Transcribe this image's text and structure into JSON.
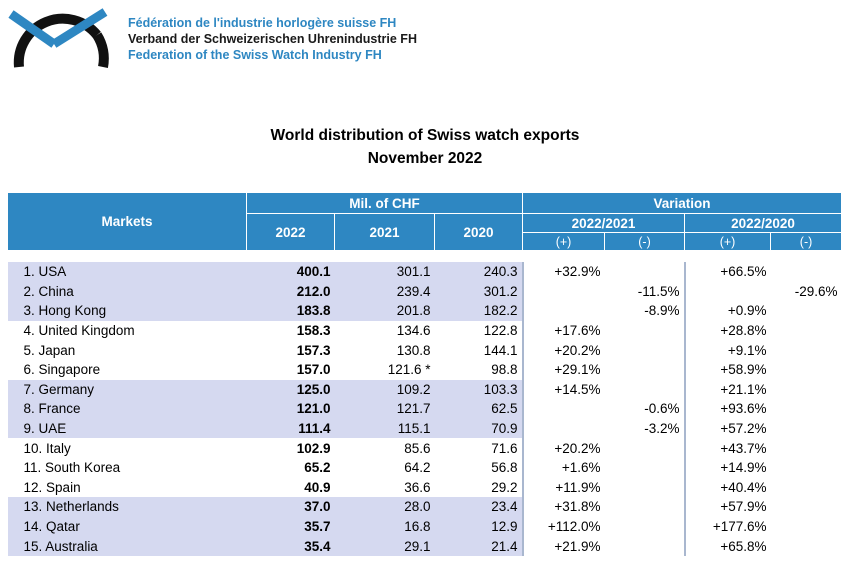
{
  "org": {
    "name_fr": "Fédération de l'industrie horlogère suisse FH",
    "name_de": "Verband der Schweizerischen Uhrenindustrie FH",
    "name_en": "Federation of the Swiss Watch Industry FH",
    "colors": {
      "brand_blue": "#2e87c2",
      "row_shade": "#d5d9f0"
    }
  },
  "title": {
    "line1": "World distribution of Swiss watch exports",
    "line2": "November 2022"
  },
  "table": {
    "headers": {
      "markets": "Markets",
      "mil_chf": "Mil. of CHF",
      "variation": "Variation",
      "y2022": "2022",
      "y2021": "2021",
      "y2020": "2020",
      "var_22_21": "2022/2021",
      "var_22_20": "2022/2020",
      "plus": "(+)",
      "minus": "(-)"
    },
    "rows": [
      {
        "rank": "1.",
        "market": "USA",
        "v2022": "400.1",
        "v2021": "301.1",
        "v2020": "240.3",
        "var1_plus": "+32.9%",
        "var1_minus": "",
        "var2_plus": "+66.5%",
        "var2_minus": ""
      },
      {
        "rank": "2.",
        "market": "China",
        "v2022": "212.0",
        "v2021": "239.4",
        "v2020": "301.2",
        "var1_plus": "",
        "var1_minus": "-11.5%",
        "var2_plus": "",
        "var2_minus": "-29.6%"
      },
      {
        "rank": "3.",
        "market": "Hong Kong",
        "v2022": "183.8",
        "v2021": "201.8",
        "v2020": "182.2",
        "var1_plus": "",
        "var1_minus": "-8.9%",
        "var2_plus": "+0.9%",
        "var2_minus": ""
      },
      {
        "rank": "4.",
        "market": "United Kingdom",
        "v2022": "158.3",
        "v2021": "134.6",
        "v2020": "122.8",
        "var1_plus": "+17.6%",
        "var1_minus": "",
        "var2_plus": "+28.8%",
        "var2_minus": ""
      },
      {
        "rank": "5.",
        "market": "Japan",
        "v2022": "157.3",
        "v2021": "130.8",
        "v2020": "144.1",
        "var1_plus": "+20.2%",
        "var1_minus": "",
        "var2_plus": "+9.1%",
        "var2_minus": ""
      },
      {
        "rank": "6.",
        "market": "Singapore",
        "v2022": "157.0",
        "v2021": "121.6 *",
        "v2020": "98.8",
        "var1_plus": "+29.1%",
        "var1_minus": "",
        "var2_plus": "+58.9%",
        "var2_minus": ""
      },
      {
        "rank": "7.",
        "market": "Germany",
        "v2022": "125.0",
        "v2021": "109.2",
        "v2020": "103.3",
        "var1_plus": "+14.5%",
        "var1_minus": "",
        "var2_plus": "+21.1%",
        "var2_minus": ""
      },
      {
        "rank": "8.",
        "market": "France",
        "v2022": "121.0",
        "v2021": "121.7",
        "v2020": "62.5",
        "var1_plus": "",
        "var1_minus": "-0.6%",
        "var2_plus": "+93.6%",
        "var2_minus": ""
      },
      {
        "rank": "9.",
        "market": "UAE",
        "v2022": "111.4",
        "v2021": "115.1",
        "v2020": "70.9",
        "var1_plus": "",
        "var1_minus": "-3.2%",
        "var2_plus": "+57.2%",
        "var2_minus": ""
      },
      {
        "rank": "10.",
        "market": "Italy",
        "v2022": "102.9",
        "v2021": "85.6",
        "v2020": "71.6",
        "var1_plus": "+20.2%",
        "var1_minus": "",
        "var2_plus": "+43.7%",
        "var2_minus": ""
      },
      {
        "rank": "11.",
        "market": "South Korea",
        "v2022": "65.2",
        "v2021": "64.2",
        "v2020": "56.8",
        "var1_plus": "+1.6%",
        "var1_minus": "",
        "var2_plus": "+14.9%",
        "var2_minus": ""
      },
      {
        "rank": "12.",
        "market": "Spain",
        "v2022": "40.9",
        "v2021": "36.6",
        "v2020": "29.2",
        "var1_plus": "+11.9%",
        "var1_minus": "",
        "var2_plus": "+40.4%",
        "var2_minus": ""
      },
      {
        "rank": "13.",
        "market": "Netherlands",
        "v2022": "37.0",
        "v2021": "28.0",
        "v2020": "23.4",
        "var1_plus": "+31.8%",
        "var1_minus": "",
        "var2_plus": "+57.9%",
        "var2_minus": ""
      },
      {
        "rank": "14.",
        "market": "Qatar",
        "v2022": "35.7",
        "v2021": "16.8",
        "v2020": "12.9",
        "var1_plus": "+112.0%",
        "var1_minus": "",
        "var2_plus": "+177.6%",
        "var2_minus": ""
      },
      {
        "rank": "15.",
        "market": "Australia",
        "v2022": "35.4",
        "v2021": "29.1",
        "v2020": "21.4",
        "var1_plus": "+21.9%",
        "var1_minus": "",
        "var2_plus": "+65.8%",
        "var2_minus": ""
      }
    ]
  }
}
